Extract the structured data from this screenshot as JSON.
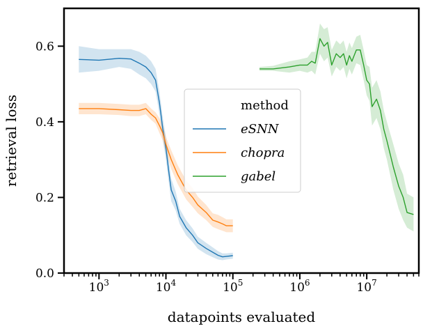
{
  "chart_data": {
    "type": "line",
    "xlabel": "datapoints evaluated",
    "ylabel": "retrieval loss",
    "xscale": "log",
    "xlim": [
      300,
      60000000
    ],
    "ylim": [
      0,
      0.7
    ],
    "xticks": [
      {
        "value": 1000,
        "base": "10",
        "exp": "3"
      },
      {
        "value": 10000,
        "base": "10",
        "exp": "4"
      },
      {
        "value": 100000,
        "base": "10",
        "exp": "5"
      },
      {
        "value": 1000000,
        "base": "10",
        "exp": "6"
      },
      {
        "value": 10000000,
        "base": "10",
        "exp": "7"
      }
    ],
    "yticks": [
      {
        "value": 0.0,
        "label": "0.0"
      },
      {
        "value": 0.2,
        "label": "0.2"
      },
      {
        "value": 0.4,
        "label": "0.4"
      },
      {
        "value": 0.6,
        "label": "0.6"
      }
    ],
    "legend": {
      "title": "method",
      "position": "center"
    },
    "series": [
      {
        "name": "eSNN",
        "color": "#1f77b4",
        "x": [
          500,
          1000,
          2000,
          3000,
          4000,
          5000,
          6000,
          7000,
          8000,
          9000,
          10000,
          11000,
          12000,
          14000,
          16000,
          20000,
          25000,
          30000,
          40000,
          50000,
          60000,
          70000,
          80000,
          100000
        ],
        "y": [
          0.565,
          0.563,
          0.568,
          0.566,
          0.555,
          0.545,
          0.53,
          0.51,
          0.45,
          0.38,
          0.33,
          0.27,
          0.22,
          0.19,
          0.15,
          0.12,
          0.1,
          0.08,
          0.065,
          0.055,
          0.047,
          0.043,
          0.044,
          0.046
        ],
        "lower": [
          0.53,
          0.535,
          0.545,
          0.54,
          0.525,
          0.515,
          0.5,
          0.48,
          0.42,
          0.35,
          0.3,
          0.24,
          0.19,
          0.165,
          0.13,
          0.1,
          0.082,
          0.064,
          0.05,
          0.042,
          0.036,
          0.034,
          0.036,
          0.038
        ],
        "upper": [
          0.6,
          0.592,
          0.592,
          0.592,
          0.585,
          0.575,
          0.56,
          0.54,
          0.48,
          0.41,
          0.36,
          0.3,
          0.25,
          0.215,
          0.17,
          0.14,
          0.118,
          0.096,
          0.08,
          0.068,
          0.058,
          0.052,
          0.052,
          0.054
        ]
      },
      {
        "name": "chopra",
        "color": "#ff7f0e",
        "x": [
          500,
          1000,
          2000,
          3000,
          4000,
          5000,
          6000,
          7000,
          8000,
          9000,
          10000,
          12000,
          15000,
          20000,
          25000,
          30000,
          40000,
          50000,
          60000,
          70000,
          80000,
          100000
        ],
        "y": [
          0.435,
          0.435,
          0.432,
          0.43,
          0.43,
          0.435,
          0.42,
          0.41,
          0.39,
          0.37,
          0.34,
          0.3,
          0.26,
          0.22,
          0.2,
          0.18,
          0.16,
          0.14,
          0.135,
          0.13,
          0.125,
          0.125
        ],
        "lower": [
          0.42,
          0.42,
          0.418,
          0.415,
          0.415,
          0.42,
          0.405,
          0.395,
          0.37,
          0.35,
          0.32,
          0.275,
          0.235,
          0.195,
          0.175,
          0.158,
          0.14,
          0.122,
          0.116,
          0.112,
          0.108,
          0.108
        ],
        "upper": [
          0.45,
          0.45,
          0.447,
          0.445,
          0.445,
          0.45,
          0.435,
          0.425,
          0.41,
          0.39,
          0.36,
          0.325,
          0.285,
          0.245,
          0.225,
          0.202,
          0.18,
          0.158,
          0.154,
          0.148,
          0.142,
          0.142
        ]
      },
      {
        "name": "gabel",
        "color": "#2ca02c",
        "x": [
          250000,
          400000,
          700000,
          1000000,
          1300000,
          1500000,
          1700000,
          2000000,
          2300000,
          2600000,
          3000000,
          3500000,
          4000000,
          4500000,
          5000000,
          5500000,
          6000000,
          7000000,
          8000000,
          9000000,
          10000000,
          11000000,
          12000000,
          14000000,
          16000000,
          18000000,
          20000000,
          25000000,
          30000000,
          35000000,
          40000000,
          50000000
        ],
        "y": [
          0.54,
          0.54,
          0.545,
          0.55,
          0.55,
          0.56,
          0.555,
          0.62,
          0.6,
          0.61,
          0.55,
          0.58,
          0.57,
          0.58,
          0.55,
          0.575,
          0.56,
          0.59,
          0.59,
          0.55,
          0.51,
          0.5,
          0.44,
          0.46,
          0.43,
          0.38,
          0.35,
          0.28,
          0.23,
          0.2,
          0.16,
          0.155
        ],
        "lower": [
          0.535,
          0.535,
          0.53,
          0.535,
          0.53,
          0.535,
          0.525,
          0.58,
          0.56,
          0.57,
          0.52,
          0.545,
          0.535,
          0.545,
          0.515,
          0.54,
          0.525,
          0.555,
          0.55,
          0.51,
          0.47,
          0.455,
          0.39,
          0.41,
          0.38,
          0.33,
          0.3,
          0.22,
          0.17,
          0.14,
          0.12,
          0.11
        ],
        "upper": [
          0.545,
          0.548,
          0.56,
          0.565,
          0.57,
          0.585,
          0.585,
          0.66,
          0.645,
          0.65,
          0.59,
          0.615,
          0.605,
          0.615,
          0.585,
          0.61,
          0.595,
          0.625,
          0.63,
          0.59,
          0.55,
          0.545,
          0.49,
          0.51,
          0.48,
          0.43,
          0.4,
          0.34,
          0.29,
          0.26,
          0.21,
          0.2
        ]
      }
    ]
  }
}
